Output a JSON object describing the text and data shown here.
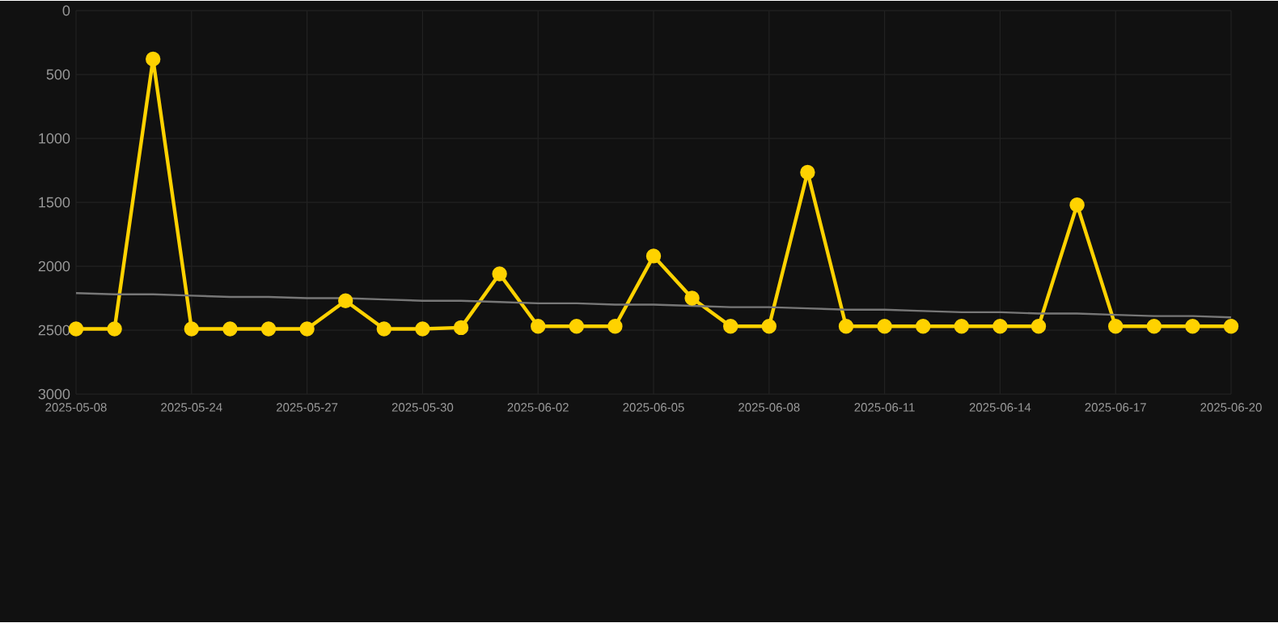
{
  "chart_data": {
    "type": "line",
    "categories": [
      "2025-05-08",
      null,
      null,
      "2025-05-24",
      null,
      null,
      "2025-05-27",
      null,
      null,
      "2025-05-30",
      null,
      null,
      "2025-06-02",
      null,
      null,
      "2025-06-05",
      null,
      null,
      "2025-06-08",
      null,
      null,
      "2025-06-11",
      null,
      null,
      "2025-06-14",
      null,
      null,
      "2025-06-17",
      null,
      null,
      "2025-06-20"
    ],
    "series": [
      {
        "color": "#ffd200",
        "marker": "circle",
        "values": [
          2490,
          2490,
          380,
          2490,
          2490,
          2490,
          2490,
          2270,
          2490,
          2490,
          2480,
          2060,
          2470,
          2470,
          2470,
          1920,
          2250,
          2470,
          2470,
          1265,
          2470,
          2470,
          2470,
          2470,
          2470,
          2470,
          1520,
          2470,
          2470,
          2470,
          2470
        ]
      },
      {
        "color": "#777777",
        "marker": "none",
        "values": [
          2210,
          2220,
          2220,
          2230,
          2240,
          2240,
          2250,
          2250,
          2260,
          2270,
          2270,
          2280,
          2290,
          2290,
          2300,
          2300,
          2310,
          2320,
          2320,
          2330,
          2340,
          2340,
          2350,
          2360,
          2360,
          2370,
          2370,
          2380,
          2390,
          2390,
          2400
        ]
      }
    ],
    "ylim": [
      3000,
      0
    ],
    "yticks": [
      0,
      500,
      1000,
      1500,
      2000,
      2500,
      3000
    ],
    "grid": true
  }
}
